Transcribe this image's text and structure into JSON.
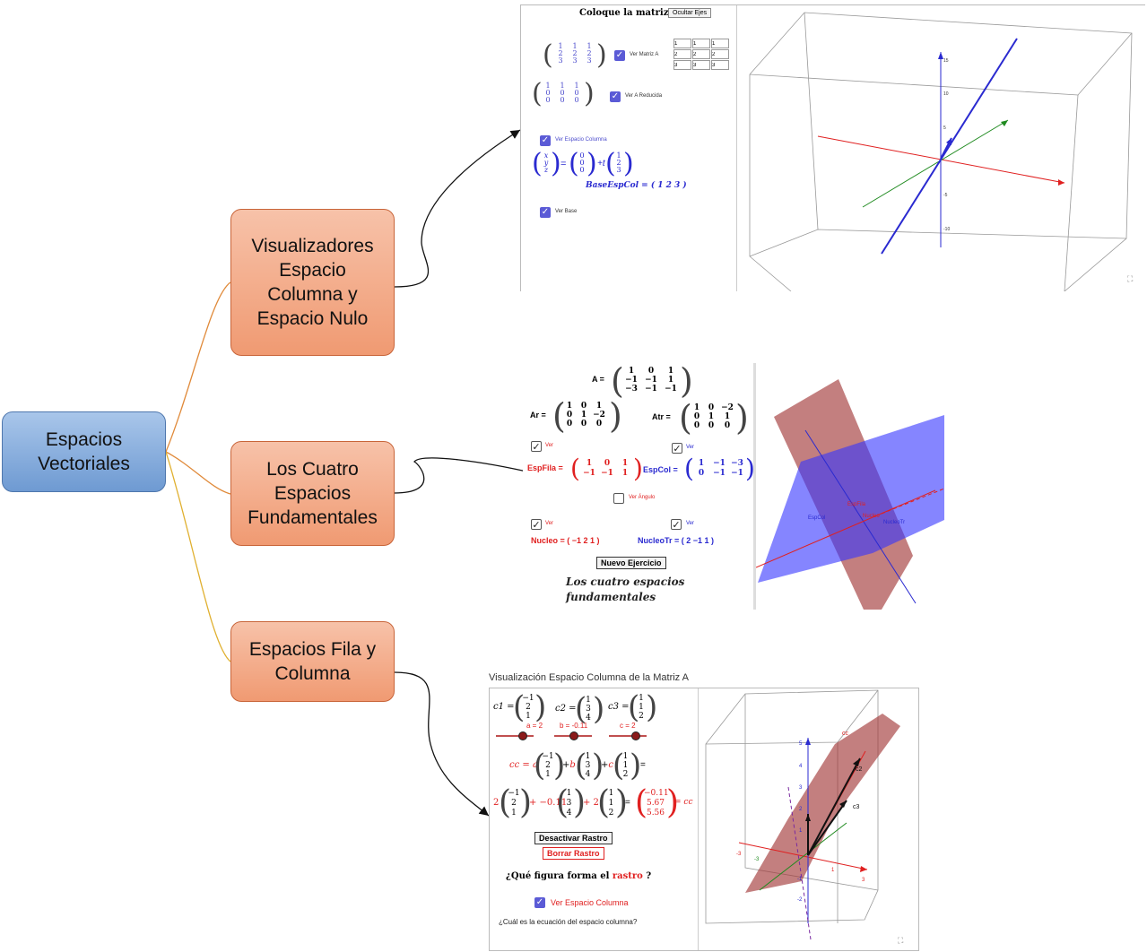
{
  "root": {
    "label": "Espacios Vectoriales"
  },
  "branches": [
    {
      "label": "Visualizadores Espacio Columna y Espacio Nulo"
    },
    {
      "label": "Los Cuatro Espacios Fundamentales"
    },
    {
      "label": "Espacios Fila y Columna"
    }
  ],
  "shot1": {
    "title": "Coloque la matriz A",
    "hide_axes": "Ocultar Ejes",
    "ver_matriz": "Ver Matriz A",
    "ver_reducida": "Ver A Reducida",
    "ver_col": "Ver Espacio Columna",
    "ver_base": "Ver Base",
    "base_label": "BaseEspCol = ( 1 2 3 )",
    "matrix_a": [
      [
        "1",
        "1",
        "1"
      ],
      [
        "2",
        "2",
        "2"
      ],
      [
        "3",
        "3",
        "3"
      ]
    ],
    "matrix_r": [
      [
        "1",
        "1",
        "1"
      ],
      [
        "0",
        "0",
        "0"
      ],
      [
        "0",
        "0",
        "0"
      ]
    ],
    "param_eq": "= t",
    "vec_xyz": [
      "x",
      "y",
      "z"
    ],
    "vec_zero": [
      "0",
      "0",
      "0"
    ],
    "vec_dir": [
      "1",
      "2",
      "3"
    ],
    "tick_labels": [
      "15",
      "10",
      "5",
      "-5",
      "-10",
      "-15"
    ],
    "expand_icon": "⛶"
  },
  "shot2": {
    "a_label": "A =",
    "matrix_a": [
      [
        "1",
        "0",
        "1"
      ],
      [
        "−1",
        "−1",
        "1"
      ],
      [
        "−3",
        "−1",
        "−1"
      ]
    ],
    "ar_label": "Ar =",
    "matrix_ar": [
      [
        "1",
        "0",
        "1"
      ],
      [
        "0",
        "1",
        "−2"
      ],
      [
        "0",
        "0",
        "0"
      ]
    ],
    "atr_label": "Atr =",
    "matrix_atr": [
      [
        "1",
        "0",
        "−2"
      ],
      [
        "0",
        "1",
        "1"
      ],
      [
        "0",
        "0",
        "0"
      ]
    ],
    "ver": "Ver",
    "ver_angulo": "Ver Ángulo",
    "espfila_label": "EspFila =",
    "espfila": [
      [
        "1",
        "0",
        "1"
      ],
      [
        "−1",
        "−1",
        "1"
      ]
    ],
    "espcol_label": "EspCol =",
    "espcol": [
      [
        "1",
        "−1",
        "−3"
      ],
      [
        "0",
        "−1",
        "−1"
      ]
    ],
    "nucleo": "Nucleo = ( −1  2  1 )",
    "nucleotr": "NucleoTr = ( 2  −1  1 )",
    "nuevo": "Nuevo Ejercicio",
    "caption_1": "Los cuatro espacios",
    "caption_2": "fundamentales",
    "plot_labels": [
      "EspFila",
      "EspCol",
      "Nucleo",
      "NucleoTr"
    ]
  },
  "shot3": {
    "title": "Visualización Espacio Columna de la Matriz A",
    "c1_label": "c1 =",
    "c1": [
      "−1",
      "2",
      "1"
    ],
    "c2_label": "c2 =",
    "c2": [
      "1",
      "3",
      "4"
    ],
    "c3_label": "c3 =",
    "c3": [
      "1",
      "1",
      "2"
    ],
    "slider_a": "a = 2",
    "slider_b": "b = -0.11",
    "slider_c": "c = 2",
    "slider_values": {
      "a": 2,
      "b": -0.11,
      "c": 2
    },
    "combo_lhs": "cc = a",
    "combo_rhs": "=",
    "coef_a": "2",
    "coef_b": "+ −0.11",
    "coef_c": "+ 2",
    "result": [
      "−0.11",
      "5.67",
      "5.56"
    ],
    "result_label": "= cc",
    "btn_desactivar": "Desactivar Rastro",
    "btn_borrar": "Borrar Rastro",
    "q1_pre": "¿Qué figura forma el",
    "q1_red": "rastro",
    "q1_post": "?",
    "ver_col": "Ver Espacio Columna",
    "q2": "¿Cuál es la ecuación del espacio columna?",
    "plot_labels": [
      "cc",
      "c2",
      "c3"
    ],
    "tick_labels": [
      "5",
      "4",
      "3",
      "2",
      "1",
      "-1",
      "-2",
      "-3",
      "3",
      "-3",
      "1"
    ]
  },
  "colors": {
    "root": "#7aa4da",
    "branch": "#f4ad8b",
    "red": "#e02020",
    "blue": "#2a2ad0",
    "green": "#1f8a1f"
  }
}
